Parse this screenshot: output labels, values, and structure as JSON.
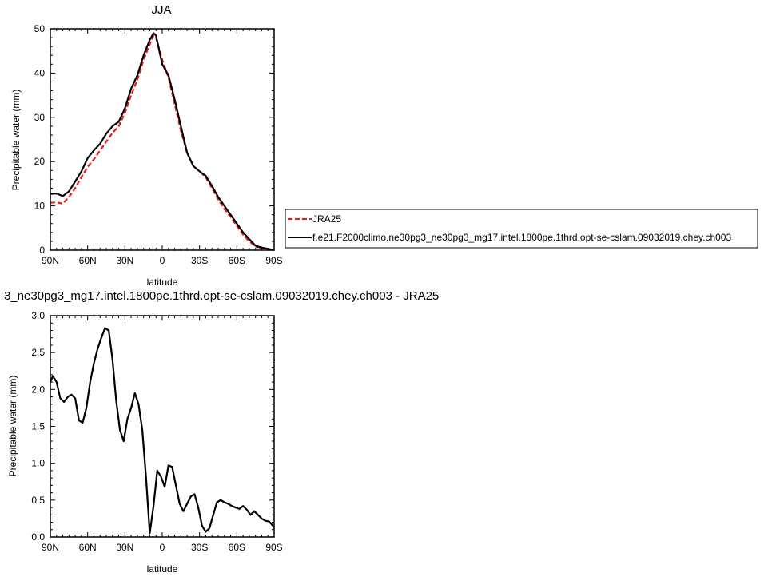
{
  "chart_data": [
    {
      "type": "line",
      "title": "JJA",
      "xlabel": "latitude",
      "ylabel": "Precipitable water (mm)",
      "xlim": [
        -90,
        90
      ],
      "ylim": [
        0,
        50
      ],
      "x_ticks": [
        -90,
        -60,
        -30,
        0,
        30,
        60,
        90
      ],
      "x_tick_labels": [
        "90N",
        "60N",
        "30N",
        "0",
        "30S",
        "60S",
        "90S"
      ],
      "y_ticks": [
        0,
        10,
        20,
        30,
        40,
        50
      ],
      "y_tick_labels": [
        "0",
        "10",
        "20",
        "30",
        "40",
        "50"
      ],
      "legend_placement": "right",
      "series": [
        {
          "name": "JRA25",
          "color": "#e41a1c",
          "dashed": true,
          "x": [
            -90,
            -85,
            -80,
            -75,
            -70,
            -65,
            -60,
            -55,
            -50,
            -45,
            -40,
            -35,
            -30,
            -25,
            -20,
            -15,
            -10,
            -7,
            -5,
            0,
            5,
            10,
            15,
            20,
            25,
            30,
            35,
            40,
            45,
            50,
            55,
            60,
            65,
            70,
            75,
            80,
            85,
            90
          ],
          "y": [
            10.7,
            10.8,
            10.5,
            12,
            14,
            16.5,
            18.8,
            20.5,
            22.5,
            24.5,
            26.5,
            28,
            31,
            35,
            38.5,
            43,
            46.5,
            48.5,
            48,
            43,
            39,
            33,
            27,
            22,
            19,
            17.8,
            16.5,
            14,
            11.5,
            9.3,
            7.5,
            5.5,
            3.5,
            2,
            0.8,
            0.5,
            0.3,
            0
          ]
        },
        {
          "name": "f.e21.F2000climo.ne30pg3_ne30pg3_mg17.intel.1800pe.1thrd.opt-se-cslam.09032019.chey.ch003",
          "color": "#000000",
          "dashed": false,
          "x": [
            -90,
            -85,
            -80,
            -75,
            -70,
            -65,
            -60,
            -55,
            -50,
            -45,
            -40,
            -35,
            -30,
            -25,
            -20,
            -15,
            -10,
            -7,
            -5,
            0,
            5,
            10,
            15,
            20,
            25,
            30,
            35,
            40,
            45,
            50,
            55,
            60,
            65,
            70,
            75,
            80,
            85,
            90
          ],
          "y": [
            12.7,
            12.8,
            12.2,
            13.3,
            15.5,
            17.8,
            20.8,
            22.5,
            24,
            26.3,
            28,
            29,
            32,
            36.5,
            39.5,
            44,
            47.5,
            49,
            48.5,
            42,
            39.5,
            34,
            28,
            22,
            19,
            17.8,
            16.8,
            14.5,
            12,
            10,
            8,
            6,
            4,
            2.5,
            1,
            0.6,
            0.3,
            0
          ]
        }
      ]
    },
    {
      "type": "line",
      "title": "3_ne30pg3_mg17.intel.1800pe.1thrd.opt-se-cslam.09032019.chey.ch003 - JRA25",
      "xlabel": "latitude",
      "ylabel": "Precipitable water (mm)",
      "xlim": [
        -90,
        90
      ],
      "ylim": [
        0,
        3
      ],
      "x_ticks": [
        -90,
        -60,
        -30,
        0,
        30,
        60,
        90
      ],
      "x_tick_labels": [
        "90N",
        "60N",
        "30N",
        "0",
        "30S",
        "60S",
        "90S"
      ],
      "y_ticks": [
        0,
        0.5,
        1,
        1.5,
        2,
        2.5,
        3
      ],
      "y_tick_labels": [
        "0.0",
        "0.5",
        "1.0",
        "1.5",
        "2.0",
        "2.5",
        "3.0"
      ],
      "series": [
        {
          "color": "#000000",
          "x": [
            -90,
            -88,
            -85,
            -82,
            -79,
            -76,
            -73,
            -70,
            -67,
            -64,
            -61,
            -58,
            -55,
            -52,
            -49,
            -46,
            -43,
            -40,
            -37,
            -34,
            -31,
            -28,
            -25,
            -22,
            -19,
            -16,
            -13,
            -10,
            -7,
            -4,
            -1,
            2,
            5,
            8,
            11,
            14,
            17,
            20,
            23,
            26,
            29,
            32,
            35,
            38,
            41,
            44,
            47,
            50,
            53,
            56,
            59,
            62,
            65,
            68,
            71,
            74,
            77,
            80,
            83,
            86,
            90
          ],
          "y": [
            2.1,
            2.18,
            2.1,
            1.88,
            1.83,
            1.9,
            1.93,
            1.88,
            1.58,
            1.55,
            1.75,
            2.1,
            2.35,
            2.55,
            2.7,
            2.83,
            2.8,
            2.4,
            1.85,
            1.45,
            1.3,
            1.6,
            1.75,
            1.95,
            1.8,
            1.45,
            0.8,
            0.05,
            0.42,
            0.9,
            0.82,
            0.68,
            0.97,
            0.95,
            0.7,
            0.45,
            0.35,
            0.45,
            0.55,
            0.58,
            0.4,
            0.15,
            0.07,
            0.12,
            0.3,
            0.47,
            0.5,
            0.47,
            0.45,
            0.42,
            0.4,
            0.38,
            0.42,
            0.37,
            0.3,
            0.35,
            0.3,
            0.25,
            0.22,
            0.21,
            0.13
          ]
        }
      ]
    }
  ]
}
